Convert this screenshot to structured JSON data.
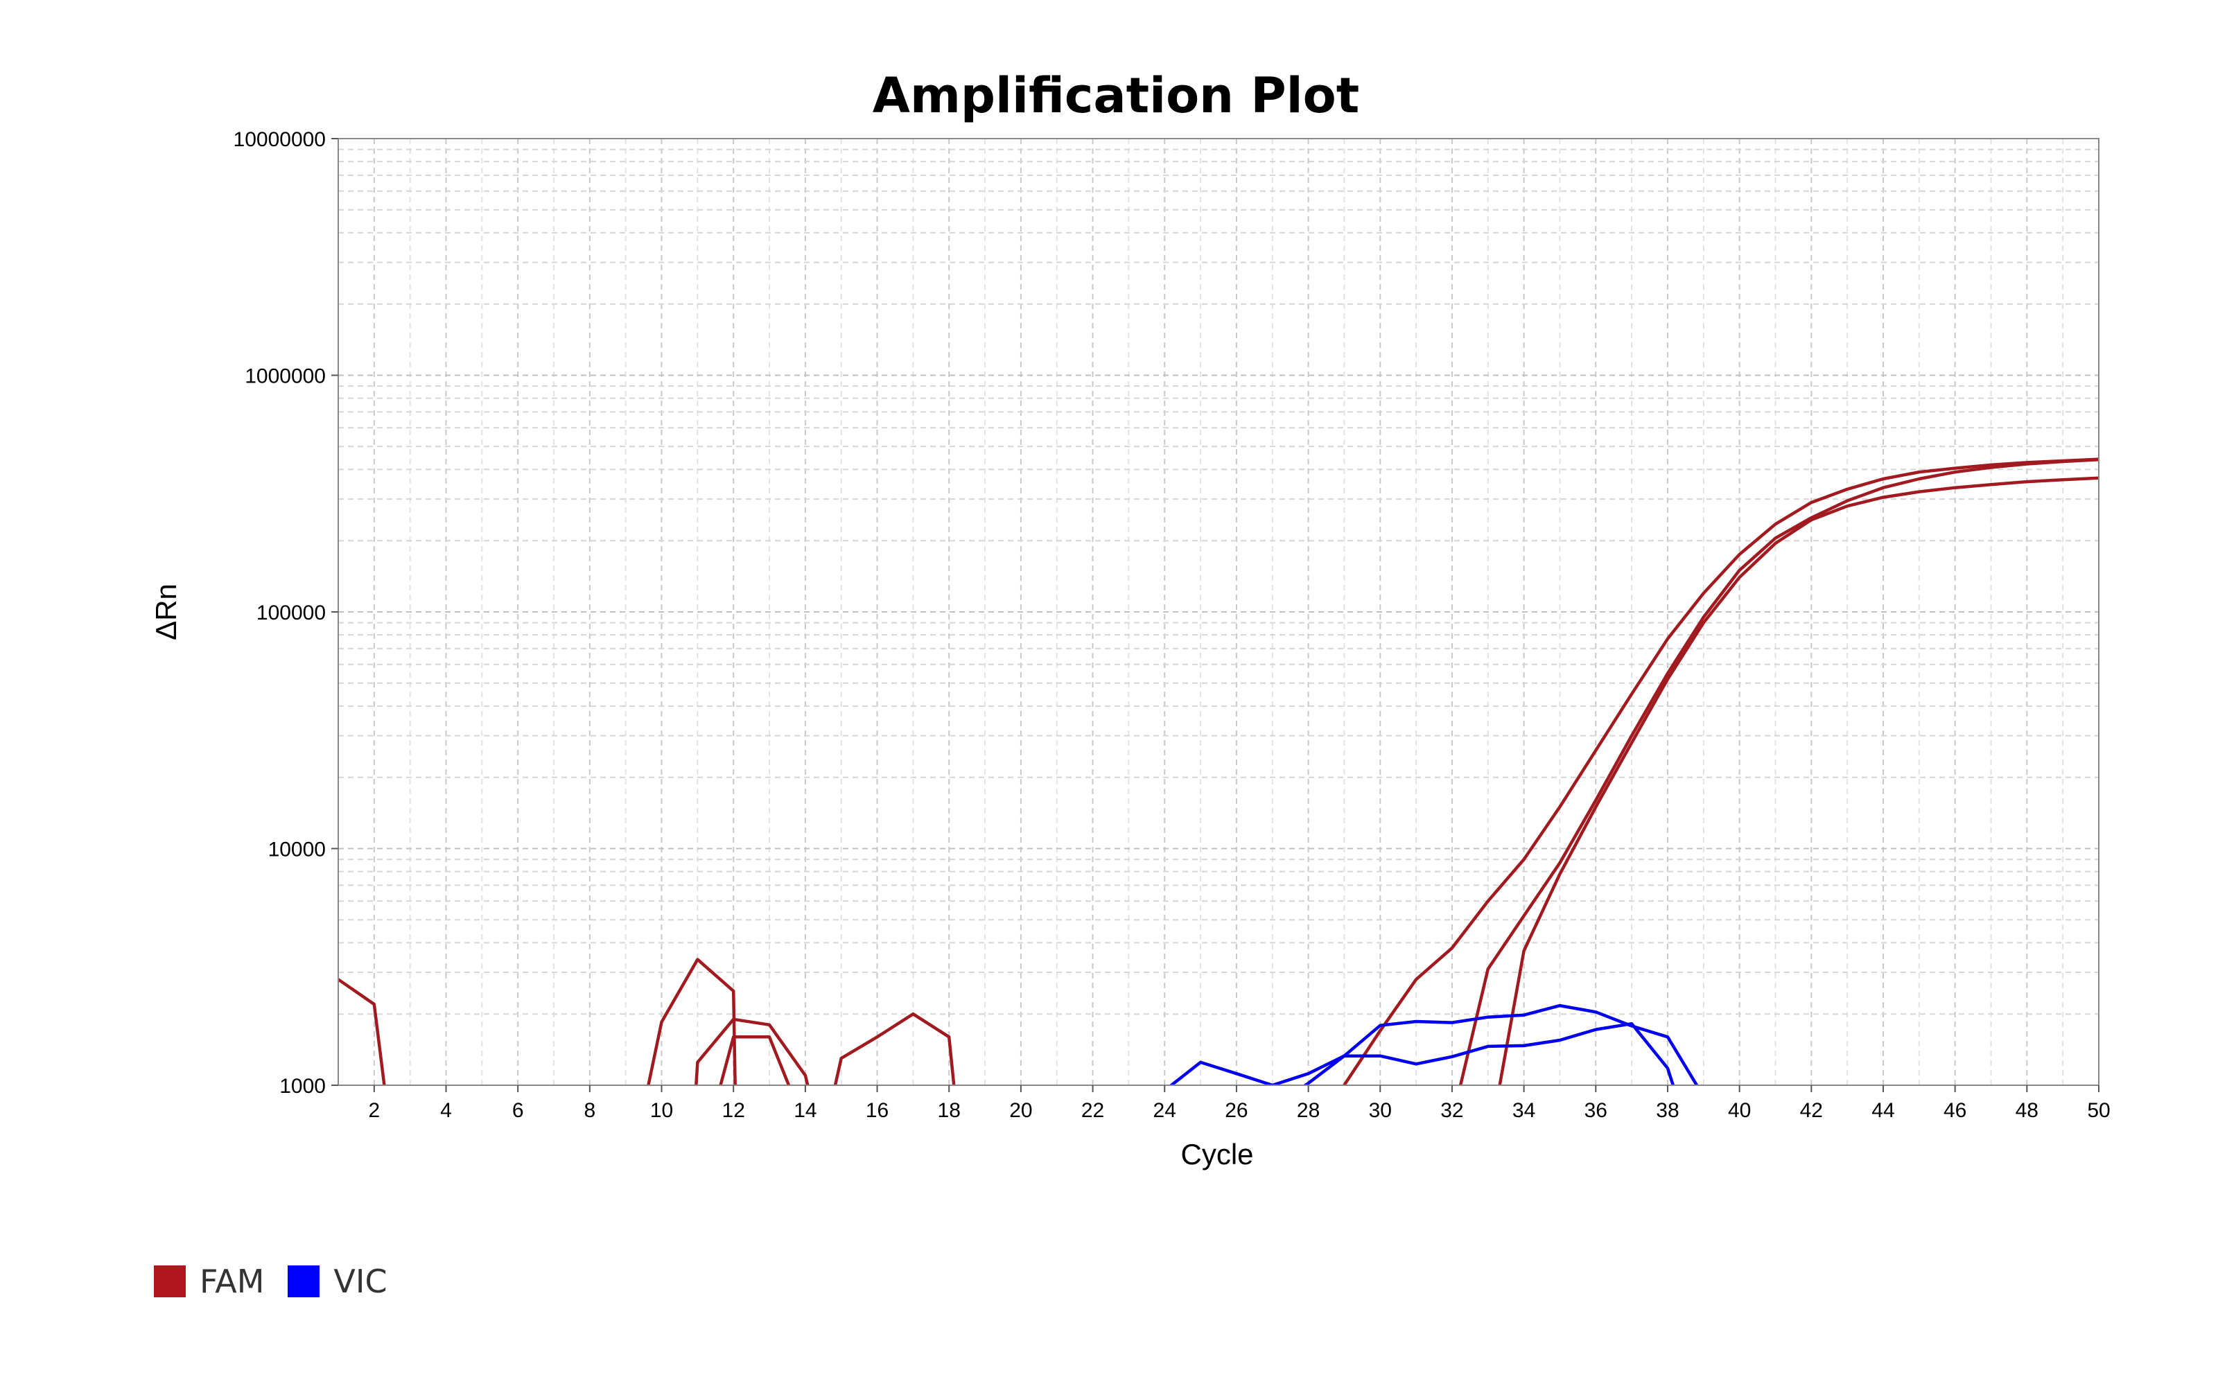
{
  "chart_data": {
    "type": "line",
    "title": "Amplification Plot",
    "xlabel": "Cycle",
    "ylabel": "ΔRn",
    "xlim": [
      1,
      50
    ],
    "ylim": [
      1000,
      10000000
    ],
    "yscale": "log",
    "grid": true,
    "x_ticks": [
      2,
      4,
      6,
      8,
      10,
      12,
      14,
      16,
      18,
      20,
      22,
      24,
      26,
      28,
      30,
      32,
      34,
      36,
      38,
      40,
      42,
      44,
      46,
      48,
      50
    ],
    "y_ticks": [
      1000,
      10000,
      100000,
      1000000,
      10000000
    ],
    "y_tick_labels": [
      "1000",
      "10000",
      "100000",
      "1000000",
      "10000000"
    ],
    "legend_position": "bottom-left",
    "legend": [
      {
        "label": "FAM",
        "color": "#b0161e"
      },
      {
        "label": "VIC",
        "color": "#0000ff"
      }
    ],
    "series": [
      {
        "dye": "FAM",
        "color": "#a01a20",
        "points": [
          [
            1,
            2800
          ],
          [
            2,
            2200
          ],
          [
            2.3,
            950
          ],
          [
            9.6,
            950
          ],
          [
            10,
            1850
          ],
          [
            11,
            3400
          ],
          [
            12,
            2500
          ],
          [
            12.05,
            950
          ],
          [
            14.8,
            950
          ],
          [
            15,
            1300
          ],
          [
            16,
            1600
          ],
          [
            17,
            2000
          ],
          [
            18,
            1600
          ],
          [
            18.15,
            950
          ],
          [
            28.9,
            950
          ],
          [
            30,
            1700
          ],
          [
            31,
            2800
          ],
          [
            32,
            3800
          ],
          [
            33,
            6000
          ],
          [
            34,
            9000
          ],
          [
            35,
            15000
          ],
          [
            36,
            26000
          ],
          [
            37,
            45000
          ],
          [
            38,
            77000
          ],
          [
            39,
            120000
          ],
          [
            40,
            175000
          ],
          [
            41,
            235000
          ],
          [
            42,
            290000
          ],
          [
            43,
            330000
          ],
          [
            44,
            365000
          ],
          [
            45,
            390000
          ],
          [
            46,
            405000
          ],
          [
            47,
            418000
          ],
          [
            48,
            428000
          ],
          [
            49,
            435000
          ],
          [
            50,
            442000
          ]
        ]
      },
      {
        "dye": "FAM",
        "color": "#a01a20",
        "points": [
          [
            10.95,
            950
          ],
          [
            11,
            1250
          ],
          [
            12,
            1900
          ],
          [
            13,
            1800
          ],
          [
            14,
            1100
          ],
          [
            14.1,
            950
          ],
          [
            32.2,
            950
          ],
          [
            33,
            3100
          ],
          [
            34,
            5200
          ],
          [
            35,
            8700
          ],
          [
            36,
            16000
          ],
          [
            37,
            30000
          ],
          [
            38,
            55000
          ],
          [
            39,
            95000
          ],
          [
            40,
            150000
          ],
          [
            41,
            205000
          ],
          [
            42,
            250000
          ],
          [
            43,
            295000
          ],
          [
            44,
            335000
          ],
          [
            45,
            365000
          ],
          [
            46,
            390000
          ],
          [
            47,
            408000
          ],
          [
            48,
            422000
          ],
          [
            49,
            432000
          ],
          [
            50,
            440000
          ]
        ]
      },
      {
        "dye": "FAM",
        "color": "#a01a20",
        "points": [
          [
            11.6,
            950
          ],
          [
            12,
            1600
          ],
          [
            13,
            1600
          ],
          [
            13.6,
            950
          ],
          [
            33.3,
            950
          ],
          [
            34,
            3700
          ],
          [
            35,
            7800
          ],
          [
            36,
            15000
          ],
          [
            37,
            28000
          ],
          [
            38,
            52000
          ],
          [
            39,
            90000
          ],
          [
            40,
            140000
          ],
          [
            41,
            195000
          ],
          [
            42,
            245000
          ],
          [
            43,
            280000
          ],
          [
            44,
            305000
          ],
          [
            45,
            322000
          ],
          [
            46,
            335000
          ],
          [
            47,
            345000
          ],
          [
            48,
            355000
          ],
          [
            49,
            362000
          ],
          [
            50,
            368000
          ]
        ]
      },
      {
        "dye": "VIC",
        "color": "#0000ee",
        "points": [
          [
            24,
            950
          ],
          [
            25,
            1250
          ],
          [
            26,
            1120
          ],
          [
            27,
            1000
          ],
          [
            28,
            1120
          ],
          [
            29,
            1330
          ],
          [
            30,
            1330
          ],
          [
            31,
            1230
          ],
          [
            32,
            1320
          ],
          [
            33,
            1460
          ],
          [
            34,
            1470
          ],
          [
            35,
            1550
          ],
          [
            36,
            1720
          ],
          [
            37,
            1820
          ],
          [
            38,
            1180
          ],
          [
            38.2,
            950
          ]
        ]
      },
      {
        "dye": "VIC",
        "color": "#0000ee",
        "points": [
          [
            27.7,
            950
          ],
          [
            28,
            1020
          ],
          [
            29,
            1330
          ],
          [
            30,
            1790
          ],
          [
            31,
            1860
          ],
          [
            32,
            1840
          ],
          [
            33,
            1940
          ],
          [
            34,
            1980
          ],
          [
            35,
            2170
          ],
          [
            36,
            2040
          ],
          [
            37,
            1780
          ],
          [
            38,
            1600
          ],
          [
            38.9,
            950
          ]
        ]
      }
    ]
  }
}
